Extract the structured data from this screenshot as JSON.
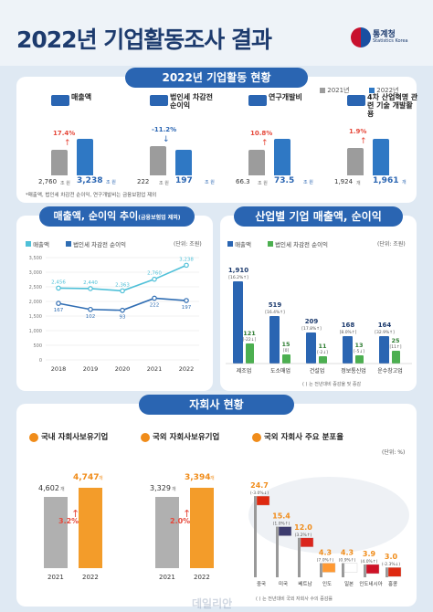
{
  "header": {
    "title": "2022년 기업활동조사 결과",
    "org": "통계청",
    "org_en": "Statistics Korea"
  },
  "section1": {
    "title": "2022년 기업활동 현황",
    "legend": [
      "2021년",
      "2022년"
    ],
    "items": [
      {
        "label": "매출액",
        "pct": "17.4%",
        "v2021": "2,760",
        "v2022": "3,238",
        "unit": "조 원",
        "dir": "up"
      },
      {
        "label": "법인세 차감전 순이익",
        "pct": "-11.2%",
        "v2021": "222",
        "v2022": "197",
        "unit": "조 원",
        "dir": "down"
      },
      {
        "label": "연구개발비",
        "pct": "10.8%",
        "v2021": "66.3",
        "v2022": "73.5",
        "unit": "조 원",
        "dir": "up"
      },
      {
        "label": "4차 산업혁명 관련 기술 개발활용",
        "pct": "1.9%",
        "v2021": "1,924",
        "v2022": "1,961",
        "unit": "개",
        "dir": "up"
      }
    ],
    "note": "*매출액, 법인세 차감전 순이익, 연구개발비는 금융보험업 제외"
  },
  "section2": {
    "title": "매출액, 순이익 추이",
    "title_note": "(금융보험업 제외)",
    "legend": [
      "매출액",
      "법인세 차감전 순이익"
    ],
    "unit": "(단위: 조원)",
    "axis_ticks": [
      "3,500",
      "3,000",
      "2,500",
      "2,000",
      "1,500",
      "1,000",
      "500",
      "0"
    ],
    "chart_data": {
      "type": "line",
      "x": [
        "2018",
        "2019",
        "2020",
        "2021",
        "2022"
      ],
      "series": [
        {
          "name": "매출액",
          "values": [
            2456,
            2440,
            2363,
            2760,
            3238
          ],
          "labels": [
            "2,456",
            "2,440",
            "2,363",
            "2,760",
            "3,238"
          ],
          "color": "#4fc0d8"
        },
        {
          "name": "법인세 차감전 순이익",
          "values": [
            167,
            102,
            93,
            222,
            197
          ],
          "labels": [
            "167",
            "102",
            "93",
            "222",
            "197"
          ],
          "color": "#2f6db3"
        }
      ]
    }
  },
  "section3": {
    "title": "산업별 기업 매출액, 순이익",
    "legend": [
      "매출액",
      "법인세 차감전 순이익"
    ],
    "unit": "(단위: 조원)",
    "note": "( ) 는 전년대비 증감율 및 증감",
    "chart_data": {
      "type": "bar",
      "categories": [
        "제조업",
        "도소매업",
        "건설업",
        "정보통신업",
        "운수창고업"
      ],
      "series": [
        {
          "name": "매출액",
          "values": [
            1910,
            519,
            209,
            168,
            164
          ],
          "labels": [
            "1,910",
            "519",
            "209",
            "168",
            "164"
          ],
          "notes": [
            "[16.2%↑]",
            "[16.4%↑]",
            "[17.8%↑]",
            "[8.0%↑]",
            "[32.9%↑]"
          ],
          "color": "#2a65b2"
        },
        {
          "name": "법인세 차감전 순이익",
          "values": [
            121,
            15,
            11,
            13,
            25
          ],
          "labels": [
            "121",
            "15",
            "11",
            "13",
            "25"
          ],
          "notes": [
            "[-22↓]",
            "[0]",
            "[-2↓]",
            "[-5↓]",
            "[11↑]"
          ],
          "color": "#4caf50"
        }
      ]
    }
  },
  "section4": {
    "title": "자회사 현황",
    "domestic": {
      "title": "국내 자회사보유기업",
      "v2021": "4,602",
      "v2022": "4,747",
      "unit": "개",
      "pct": "3.2%",
      "years": [
        "2021",
        "2022"
      ]
    },
    "foreign": {
      "title": "국외 자회사보유기업",
      "v2021": "3,329",
      "v2022": "3,394",
      "unit": "개",
      "pct": "2.0%",
      "years": [
        "2021",
        "2022"
      ]
    },
    "distribution": {
      "title": "국외 자회사 주요 분포율",
      "unit": "(단위: %)",
      "note": "( ) 는 전년대비 국외 자회사 수의 증감률",
      "chart_data": {
        "type": "bar",
        "categories": [
          "중국",
          "미국",
          "베트남",
          "인도",
          "일본",
          "인도네시아",
          "홍콩"
        ],
        "values": [
          24.7,
          15.4,
          12.0,
          4.3,
          4.3,
          3.9,
          3.0
        ],
        "labels": [
          "24.7",
          "15.4",
          "12.0",
          "4.3",
          "4.3",
          "3.9",
          "3.0"
        ],
        "notes": [
          "(-3.0%↓)",
          "(1.0%↑)",
          "(3.2%↑)",
          "(7.0%↑)",
          "(0.9%↑)",
          "(4.0%↑)",
          "(-2.3%↓)"
        ]
      }
    }
  },
  "watermark": "데일리안"
}
